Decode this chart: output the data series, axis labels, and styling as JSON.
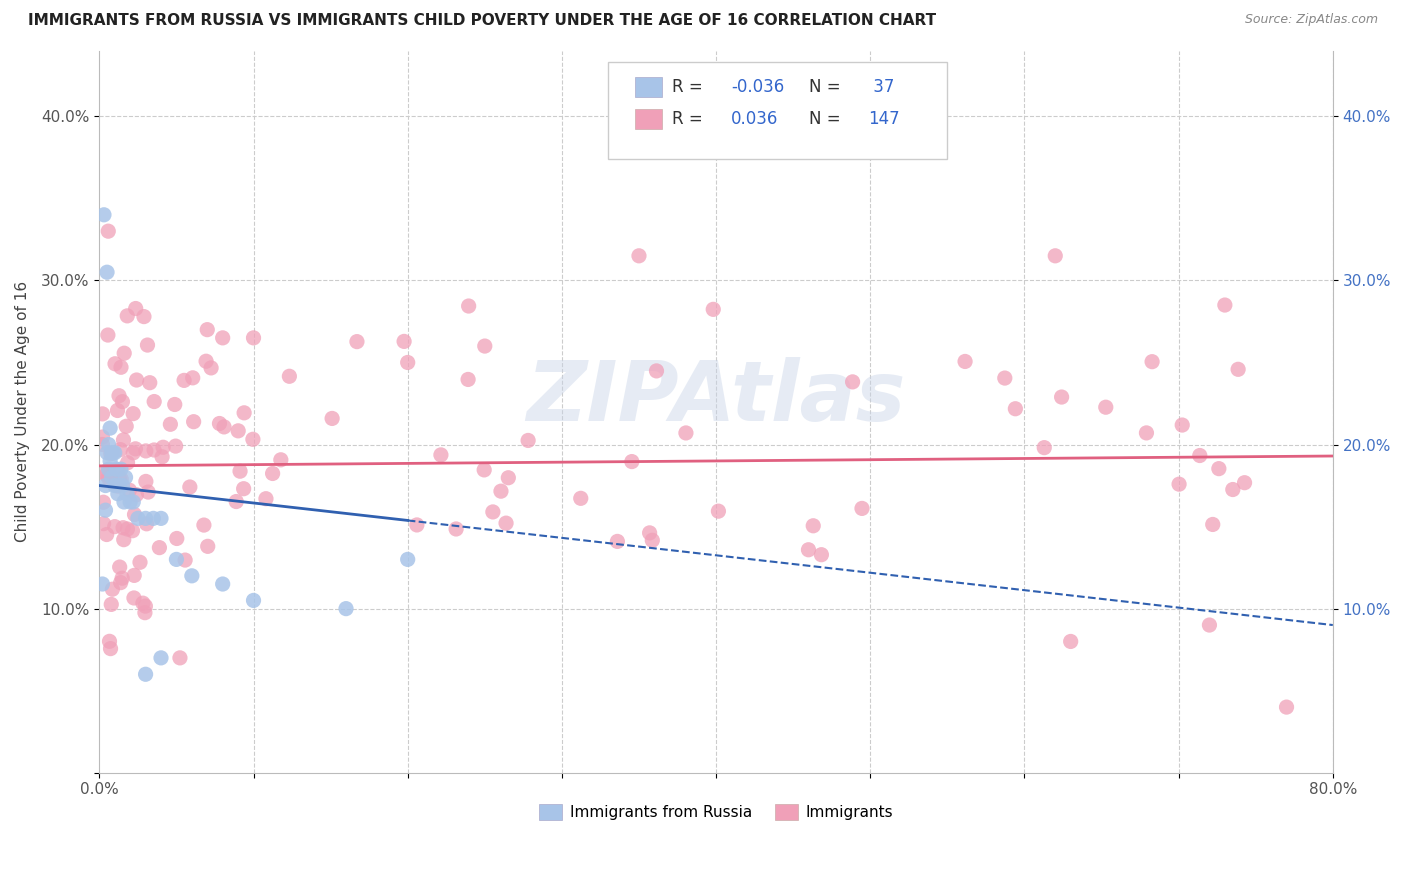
{
  "title": "IMMIGRANTS FROM RUSSIA VS IMMIGRANTS CHILD POVERTY UNDER THE AGE OF 16 CORRELATION CHART",
  "source": "Source: ZipAtlas.com",
  "ylabel": "Child Poverty Under the Age of 16",
  "xlim": [
    0.0,
    0.8
  ],
  "ylim": [
    0.0,
    0.44
  ],
  "blue_color": "#a8c4e8",
  "pink_color": "#f0a0b8",
  "blue_line_color": "#3060b0",
  "pink_line_color": "#e06080",
  "grid_color": "#cccccc",
  "watermark": "ZIPAtlas",
  "title_fontsize": 11,
  "tick_fontsize": 11,
  "ylabel_fontsize": 11
}
